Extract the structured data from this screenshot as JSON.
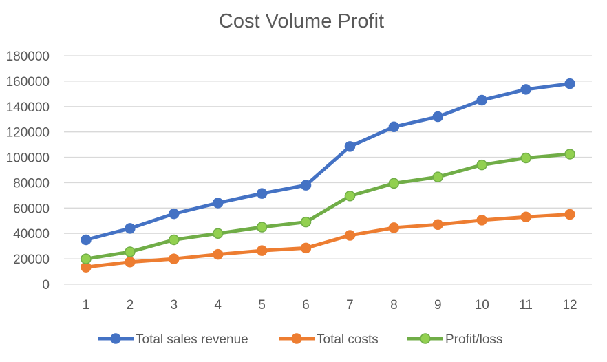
{
  "chart_data": {
    "type": "line",
    "title": "Cost Volume Profit",
    "xlabel": "",
    "ylabel": "",
    "categories": [
      "1",
      "2",
      "3",
      "4",
      "5",
      "6",
      "7",
      "8",
      "9",
      "10",
      "11",
      "12"
    ],
    "ylim": [
      0,
      180000
    ],
    "yticks": [
      "0",
      "20000",
      "40000",
      "60000",
      "80000",
      "100000",
      "120000",
      "140000",
      "160000",
      "180000"
    ],
    "grid": true,
    "legend": "bottom",
    "series": [
      {
        "name": "Total sales revenue",
        "color": "#4472C4",
        "marker_fill": "#4472C4",
        "values": [
          35000,
          44000,
          55500,
          64000,
          71500,
          78000,
          108500,
          124000,
          132000,
          145000,
          153500,
          158000
        ]
      },
      {
        "name": "Total costs",
        "color": "#ED7D31",
        "marker_fill": "#ED7D31",
        "values": [
          13500,
          17500,
          20000,
          23500,
          26500,
          28500,
          38500,
          44500,
          47000,
          50500,
          53000,
          55000
        ]
      },
      {
        "name": "Profit/loss",
        "color": "#70AD47",
        "marker_fill": "#92D050",
        "values": [
          20000,
          25500,
          35000,
          40000,
          45000,
          49000,
          69500,
          79500,
          84500,
          94000,
          99500,
          102500
        ]
      }
    ]
  }
}
